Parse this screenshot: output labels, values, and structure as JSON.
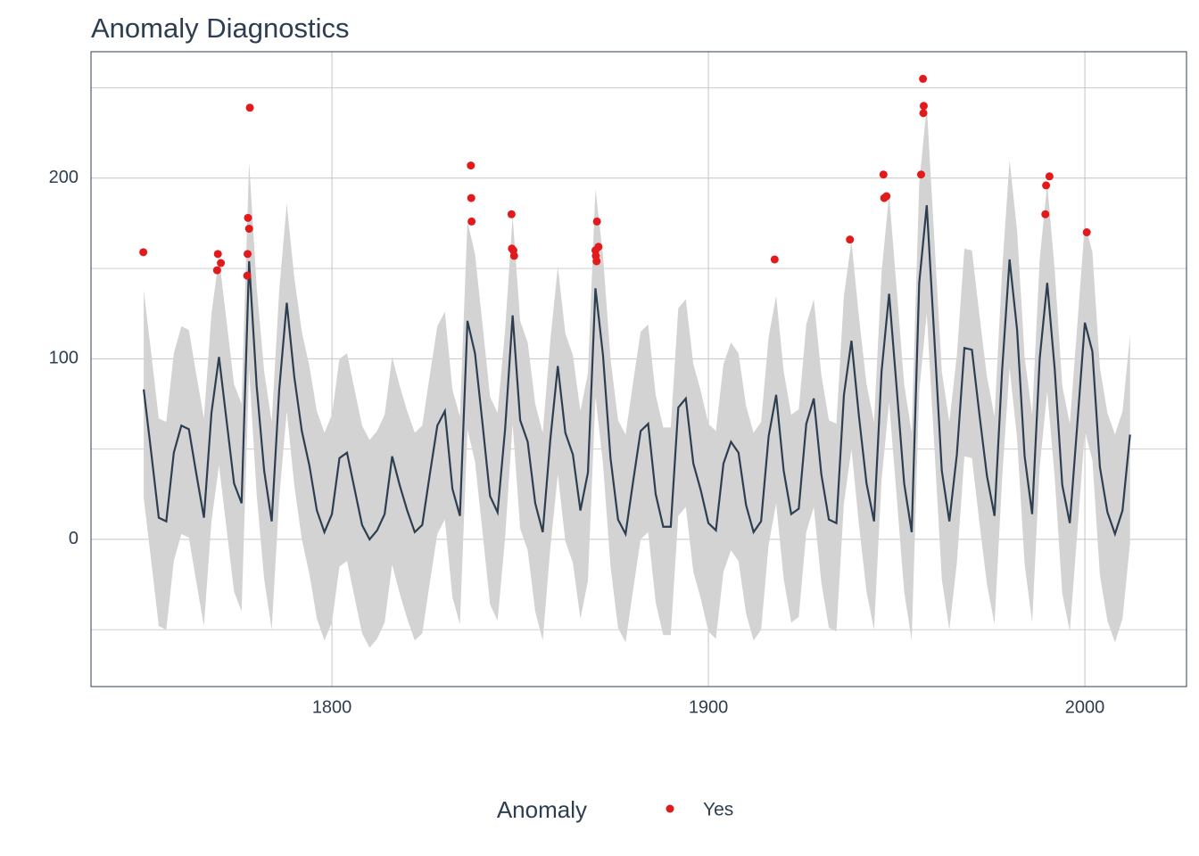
{
  "chart_data": {
    "type": "line",
    "title": "Anomaly Diagnostics",
    "x": [
      1750,
      1752,
      1754,
      1756,
      1758,
      1760,
      1762,
      1764,
      1766,
      1768,
      1770,
      1772,
      1774,
      1776,
      1778,
      1780,
      1782,
      1784,
      1786,
      1788,
      1790,
      1792,
      1794,
      1796,
      1798,
      1800,
      1802,
      1804,
      1806,
      1808,
      1810,
      1812,
      1814,
      1816,
      1818,
      1820,
      1822,
      1824,
      1826,
      1828,
      1830,
      1832,
      1834,
      1836,
      1838,
      1840,
      1842,
      1844,
      1846,
      1848,
      1850,
      1852,
      1854,
      1856,
      1858,
      1860,
      1862,
      1864,
      1866,
      1868,
      1870,
      1872,
      1874,
      1876,
      1878,
      1880,
      1882,
      1884,
      1886,
      1888,
      1890,
      1892,
      1894,
      1896,
      1898,
      1900,
      1902,
      1904,
      1906,
      1908,
      1910,
      1912,
      1914,
      1916,
      1918,
      1920,
      1922,
      1924,
      1926,
      1928,
      1930,
      1932,
      1934,
      1936,
      1938,
      1940,
      1942,
      1944,
      1946,
      1948,
      1950,
      1952,
      1954,
      1956,
      1958,
      1960,
      1962,
      1964,
      1966,
      1968,
      1970,
      1972,
      1974,
      1976,
      1978,
      1980,
      1982,
      1984,
      1986,
      1988,
      1990,
      1992,
      1994,
      1996,
      1998,
      2000,
      2002,
      2004,
      2006,
      2008,
      2010,
      2012
    ],
    "series": [
      {
        "color": "#2c3e50",
        "values": [
          83,
          48,
          12,
          10,
          48,
          63,
          61,
          36,
          12,
          70,
          101,
          66,
          31,
          20,
          154,
          85,
          38,
          10,
          83,
          131,
          90,
          60,
          41,
          16,
          4,
          14,
          45,
          48,
          28,
          8,
          0,
          5,
          14,
          46,
          30,
          16,
          4,
          8,
          36,
          63,
          71,
          28,
          13,
          121,
          103,
          64,
          24,
          15,
          61,
          124,
          66,
          54,
          20,
          4,
          55,
          96,
          59,
          47,
          16,
          37,
          139,
          102,
          45,
          11,
          3,
          32,
          60,
          64,
          25,
          7,
          7,
          73,
          78,
          42,
          27,
          9,
          5,
          42,
          54,
          48,
          19,
          4,
          10,
          57,
          80,
          38,
          14,
          17,
          64,
          78,
          36,
          11,
          9,
          80,
          110,
          68,
          31,
          10,
          93,
          136,
          84,
          31,
          4,
          142,
          185,
          112,
          38,
          10,
          47,
          106,
          105,
          69,
          35,
          13,
          93,
          155,
          116,
          46,
          14,
          100,
          142,
          94,
          30,
          9,
          64,
          120,
          104,
          40,
          15,
          3,
          16,
          58
        ]
      }
    ],
    "band": {
      "color": "#d3d3d3",
      "upper": [
        138,
        103,
        67,
        65,
        103,
        118,
        116,
        91,
        67,
        125,
        156,
        121,
        86,
        75,
        209,
        140,
        93,
        65,
        138,
        186,
        145,
        115,
        96,
        71,
        59,
        69,
        100,
        103,
        83,
        63,
        55,
        60,
        69,
        101,
        85,
        71,
        59,
        63,
        91,
        118,
        126,
        83,
        68,
        176,
        158,
        119,
        79,
        70,
        116,
        179,
        121,
        109,
        75,
        59,
        110,
        151,
        114,
        102,
        71,
        92,
        194,
        157,
        100,
        66,
        58,
        87,
        115,
        119,
        80,
        62,
        62,
        128,
        133,
        97,
        82,
        64,
        60,
        97,
        109,
        103,
        74,
        59,
        65,
        112,
        135,
        93,
        69,
        72,
        119,
        133,
        91,
        66,
        64,
        135,
        165,
        123,
        86,
        65,
        148,
        191,
        139,
        86,
        59,
        197,
        240,
        167,
        93,
        65,
        102,
        161,
        160,
        124,
        90,
        68,
        148,
        210,
        171,
        101,
        69,
        155,
        197,
        149,
        85,
        64,
        119,
        175,
        159,
        95,
        70,
        58,
        71,
        113
      ],
      "lower": [
        23,
        -12,
        -48,
        -50,
        -12,
        3,
        1,
        -24,
        -48,
        10,
        41,
        6,
        -29,
        -40,
        94,
        25,
        -22,
        -50,
        23,
        71,
        30,
        0,
        -19,
        -44,
        -56,
        -46,
        -15,
        -12,
        -32,
        -52,
        -60,
        -55,
        -46,
        -14,
        -30,
        -44,
        -56,
        -52,
        -24,
        3,
        11,
        -32,
        -47,
        61,
        43,
        4,
        -36,
        -45,
        1,
        64,
        6,
        -6,
        -40,
        -56,
        -5,
        36,
        -1,
        -13,
        -44,
        -23,
        79,
        42,
        -15,
        -49,
        -57,
        -28,
        0,
        4,
        -35,
        -53,
        -53,
        13,
        18,
        -18,
        -33,
        -51,
        -55,
        -18,
        -6,
        -12,
        -41,
        -56,
        -50,
        -3,
        20,
        -22,
        -46,
        -43,
        4,
        18,
        -24,
        -49,
        -51,
        20,
        50,
        8,
        -29,
        -50,
        33,
        76,
        24,
        -29,
        -56,
        82,
        125,
        52,
        -22,
        -50,
        -13,
        46,
        45,
        9,
        -25,
        -47,
        33,
        95,
        56,
        -14,
        -46,
        40,
        82,
        34,
        -30,
        -51,
        4,
        60,
        44,
        -20,
        -45,
        -57,
        -44,
        -2
      ]
    },
    "anomalies": {
      "name": "Yes",
      "color": "#e31a1c",
      "x": [
        1749.9,
        1769.5,
        1769.7,
        1770.5,
        1777.5,
        1777.6,
        1777.7,
        1778.0,
        1778.2,
        1836.9,
        1837.0,
        1837.1,
        1847.7,
        1847.8,
        1848.2,
        1848.4,
        1870.0,
        1870.1,
        1870.3,
        1870.4,
        1870.8,
        1917.6,
        1937.6,
        1946.5,
        1946.7,
        1947.3,
        1956.5,
        1957.0,
        1957.1,
        1957.2,
        1989.5,
        1989.7,
        1990.6,
        2000.5
      ],
      "values": [
        159,
        149,
        158,
        153,
        146,
        158,
        178,
        172,
        239,
        207,
        189,
        176,
        180,
        161,
        160,
        157,
        160,
        157,
        154,
        176,
        162,
        155,
        166,
        202,
        189,
        190,
        202,
        255,
        236,
        240,
        180,
        196,
        201,
        170
      ]
    },
    "legend_title": "Anomaly",
    "xlim": [
      1736,
      2027
    ],
    "xticks": [
      1800,
      1900,
      2000
    ],
    "ylim": [
      -81.5,
      270
    ],
    "yticks": [
      0,
      100,
      200
    ],
    "yminor": [
      -50,
      50,
      150,
      250
    ],
    "grid": true
  }
}
